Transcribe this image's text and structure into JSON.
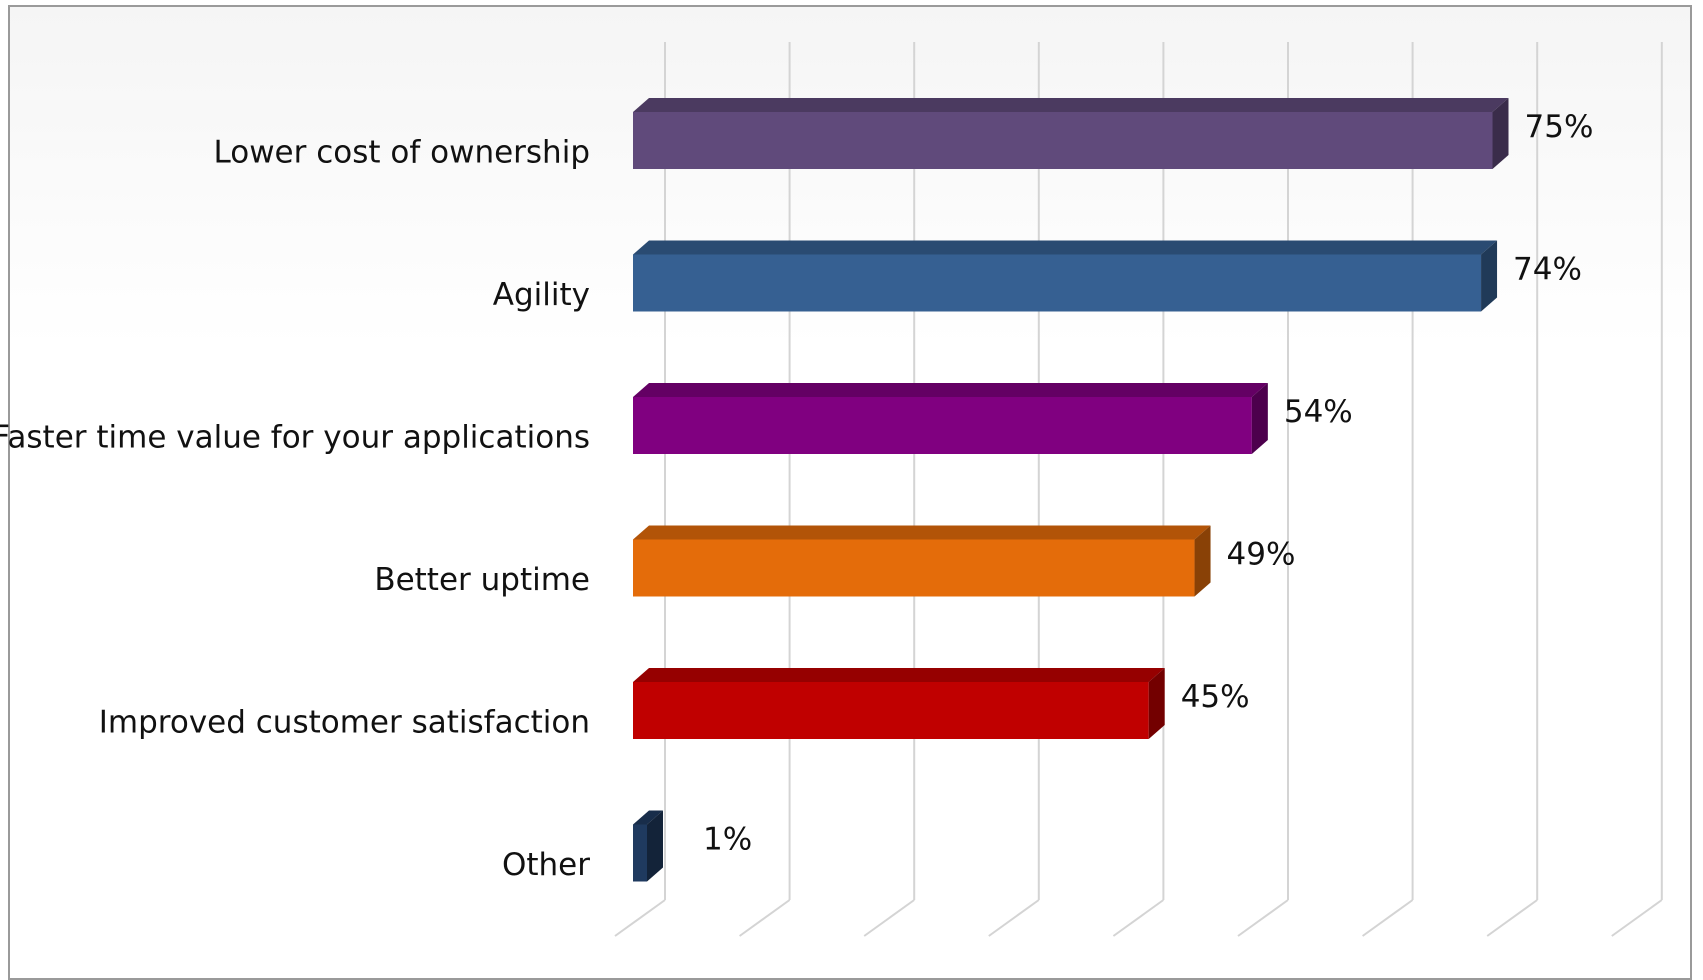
{
  "chart_data": {
    "type": "bar",
    "orientation": "horizontal",
    "style": "3d",
    "categories": [
      "Lower cost of ownership",
      "Agility",
      "Faster time value for your applications",
      "Better uptime",
      "Improved customer satisfaction",
      "Other"
    ],
    "values": [
      75,
      74,
      54,
      49,
      45,
      1
    ],
    "value_labels": [
      "75%",
      "74%",
      "54%",
      "49%",
      "45%",
      "1%"
    ],
    "unit": "%",
    "xlim": [
      0,
      83
    ],
    "grid": true,
    "legend": false,
    "colors": [
      "#604A7B",
      "#366092",
      "#800080",
      "#E46C0A",
      "#C00000",
      "#1F3A5F"
    ]
  }
}
